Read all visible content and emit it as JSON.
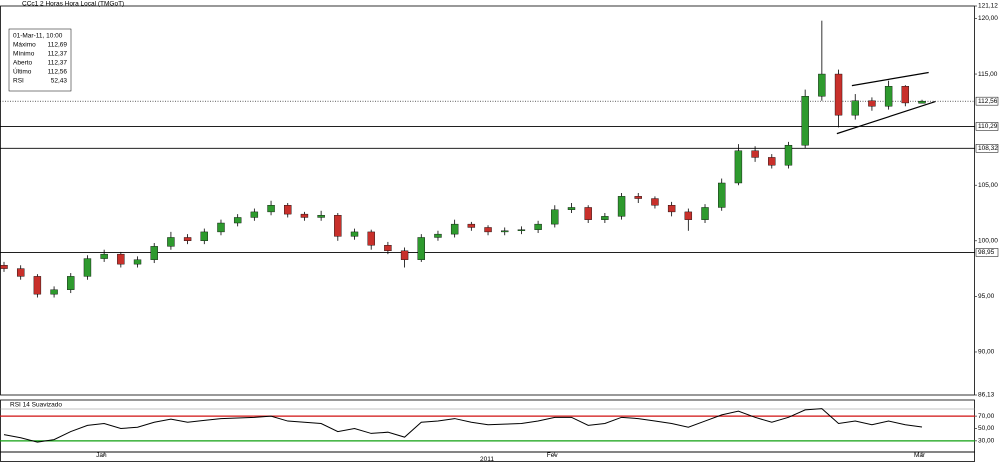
{
  "chart_data": {
    "type": "candlestick",
    "title": "CCc1 2 Horas Hora Local (TMGoT)",
    "info": {
      "date": "01-Mar-11, 10:00",
      "rows": [
        {
          "label": "Máximo",
          "value": "112,69"
        },
        {
          "label": "Mínimo",
          "value": "112,37"
        },
        {
          "label": "Aberto",
          "value": "112,37"
        },
        {
          "label": "Último",
          "value": "112,56"
        },
        {
          "label": "RSI",
          "value": "52,43"
        }
      ]
    },
    "categories": [
      null,
      null,
      null,
      null,
      null,
      null,
      "Jan",
      null,
      null,
      null,
      null,
      null,
      null,
      null,
      null,
      null,
      null,
      null,
      null,
      null,
      null,
      null,
      null,
      null,
      null,
      null,
      null,
      null,
      null,
      null,
      null,
      null,
      null,
      "Fev",
      null,
      null,
      null,
      null,
      null,
      null,
      null,
      null,
      null,
      null,
      null,
      null,
      null,
      null,
      null,
      null,
      null,
      null,
      null,
      null,
      null,
      "Mar"
    ],
    "x_group_label": "2011",
    "open": [
      97.8,
      97.5,
      96.8,
      95.2,
      95.6,
      96.8,
      98.4,
      98.8,
      97.9,
      98.3,
      99.5,
      100.3,
      100.0,
      100.8,
      101.6,
      102.1,
      102.6,
      103.2,
      102.4,
      102.1,
      102.3,
      100.4,
      100.8,
      99.6,
      99.1,
      98.3,
      100.3,
      100.6,
      101.5,
      101.2,
      100.8,
      100.9,
      101.0,
      101.5,
      102.8,
      103.0,
      101.9,
      102.2,
      104.0,
      103.8,
      103.2,
      102.6,
      101.9,
      103.0,
      105.2,
      108.1,
      107.5,
      106.8,
      108.6,
      113.0,
      115.0,
      111.3,
      112.6,
      112.1,
      113.9,
      112.37
    ],
    "high": [
      98.1,
      97.8,
      97.0,
      95.9,
      97.1,
      98.7,
      99.2,
      99.0,
      98.6,
      99.8,
      100.8,
      100.6,
      101.1,
      101.9,
      102.4,
      102.9,
      103.6,
      103.4,
      102.6,
      102.7,
      102.5,
      101.1,
      101.0,
      99.9,
      99.4,
      100.6,
      100.9,
      101.9,
      101.7,
      101.4,
      101.2,
      101.3,
      101.8,
      103.2,
      103.4,
      103.2,
      102.5,
      104.3,
      104.3,
      104.0,
      103.5,
      102.9,
      103.3,
      105.6,
      108.7,
      108.5,
      107.8,
      108.9,
      113.6,
      119.8,
      115.4,
      113.2,
      112.9,
      114.4,
      114.0,
      112.69
    ],
    "low": [
      97.2,
      96.5,
      94.9,
      94.9,
      95.3,
      96.5,
      98.1,
      97.6,
      97.6,
      98.0,
      99.2,
      99.7,
      99.7,
      100.5,
      101.3,
      101.8,
      102.3,
      102.1,
      101.8,
      101.8,
      100.0,
      100.1,
      99.2,
      98.8,
      97.6,
      98.1,
      100.0,
      100.3,
      100.9,
      100.5,
      100.5,
      100.6,
      100.7,
      101.2,
      102.5,
      101.6,
      101.6,
      101.9,
      103.4,
      102.9,
      102.2,
      100.9,
      101.6,
      102.7,
      105.0,
      107.1,
      106.5,
      106.5,
      108.3,
      112.6,
      110.2,
      110.9,
      111.7,
      111.8,
      112.1,
      112.37
    ],
    "close": [
      97.5,
      96.8,
      95.2,
      95.6,
      96.8,
      98.4,
      98.8,
      97.9,
      98.3,
      99.5,
      100.3,
      100.0,
      100.8,
      101.6,
      102.1,
      102.6,
      103.2,
      102.4,
      102.1,
      102.3,
      100.4,
      100.8,
      99.6,
      99.1,
      98.3,
      100.3,
      100.6,
      101.5,
      101.2,
      100.8,
      100.9,
      101.0,
      101.5,
      102.8,
      103.0,
      101.9,
      102.2,
      104.0,
      103.8,
      103.2,
      102.6,
      101.9,
      103.0,
      105.2,
      108.1,
      107.5,
      106.8,
      108.6,
      113.0,
      115.0,
      111.3,
      112.6,
      112.1,
      113.9,
      112.4,
      112.56
    ],
    "up_color": "#2e9a2e",
    "down_color": "#c8302b",
    "ylim": [
      86.13,
      121.12
    ],
    "yticks": [
      {
        "value": 121.12,
        "label": "121,12"
      },
      {
        "value": 120,
        "label": "120,00"
      },
      {
        "value": 115,
        "label": "115,00"
      },
      {
        "value": 105,
        "label": "105,00"
      },
      {
        "value": 100,
        "label": "100,00"
      },
      {
        "value": 95,
        "label": "95,00"
      },
      {
        "value": 90,
        "label": "90,00"
      },
      {
        "value": 86.13,
        "label": "86,13"
      }
    ],
    "levels": [
      {
        "value": 110.29,
        "label": "110,29"
      },
      {
        "value": 108.32,
        "label": "108,32"
      },
      {
        "value": 98.95,
        "label": "98,95"
      }
    ],
    "last_price": {
      "value": 112.56,
      "label": "112,56"
    },
    "trendlines": [
      {
        "x": [
          50.8,
          55.4
        ],
        "y": [
          113.96,
          115.14
        ]
      },
      {
        "x": [
          49.9,
          55.8
        ],
        "y": [
          109.64,
          112.52
        ]
      }
    ],
    "rsi": {
      "title": "RSI 14 Suavizado",
      "color": "#000000",
      "values": [
        40,
        35,
        28,
        32,
        45,
        55,
        58,
        50,
        52,
        60,
        65,
        60,
        63,
        66,
        67,
        68,
        70,
        62,
        60,
        58,
        45,
        50,
        42,
        44,
        36,
        60,
        62,
        66,
        60,
        56,
        57,
        58,
        62,
        68,
        68,
        55,
        58,
        68,
        66,
        62,
        58,
        52,
        62,
        72,
        78,
        68,
        60,
        68,
        80,
        82,
        58,
        62,
        56,
        62,
        56,
        52.43
      ],
      "ylim": [
        12,
        96
      ],
      "yticks": [
        {
          "value": 70,
          "label": "70,00"
        },
        {
          "value": 50,
          "label": "50,00"
        },
        {
          "value": 30,
          "label": "30,00"
        }
      ],
      "overbought": 70,
      "oversold": 30,
      "overbought_color": "#d01010",
      "oversold_color": "#10a010"
    }
  }
}
